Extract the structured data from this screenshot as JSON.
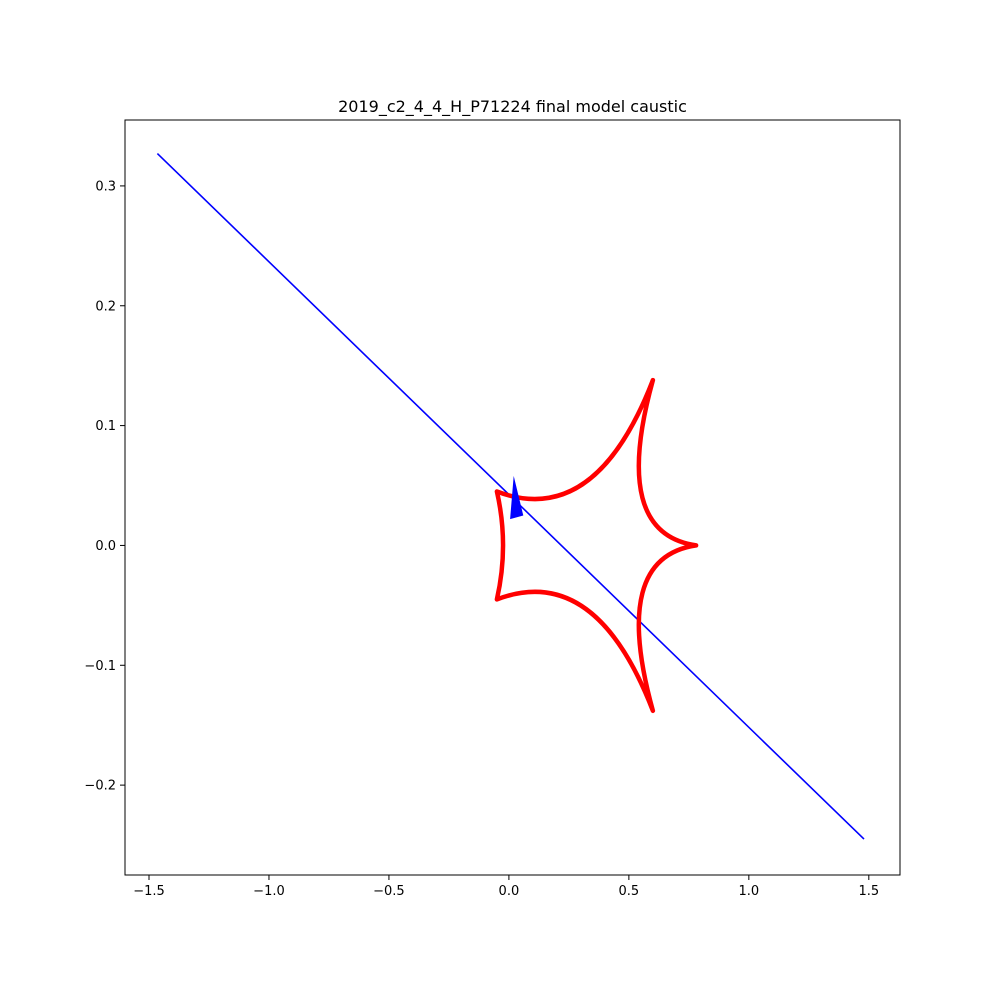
{
  "chart_data": {
    "type": "line",
    "title": "2019_c2_4_4_H_P71224 final model caustic",
    "xlabel": "",
    "ylabel": "",
    "xlim": [
      -1.6,
      1.63
    ],
    "ylim": [
      -0.275,
      0.355
    ],
    "xticks": [
      -1.5,
      -1.0,
      -0.5,
      0.0,
      0.5,
      1.0,
      1.5
    ],
    "xtick_labels": [
      "−1.5",
      "−1.0",
      "−0.5",
      "0.0",
      "0.5",
      "1.0",
      "1.5"
    ],
    "yticks": [
      -0.2,
      -0.1,
      0.0,
      0.1,
      0.2,
      0.3
    ],
    "ytick_labels": [
      "−0.2",
      "−0.1",
      "0.0",
      "0.1",
      "0.2",
      "0.3"
    ],
    "grid": false,
    "series": [
      {
        "kind": "trajectory",
        "color": "#0000ff",
        "x": [
          -1.465,
          1.48
        ],
        "y": [
          0.327,
          -0.245
        ]
      },
      {
        "kind": "caustic",
        "color": "#ff0000",
        "cusps": [
          [
            -0.05,
            0.045
          ],
          [
            0.6,
            0.138
          ],
          [
            0.78,
            0.0
          ],
          [
            0.6,
            -0.138
          ],
          [
            -0.05,
            -0.045
          ]
        ]
      }
    ],
    "arrow": {
      "color": "#0000ff",
      "tip": [
        0.02,
        0.058
      ],
      "base": [
        [
          0.005,
          0.022
        ],
        [
          0.06,
          0.025
        ]
      ]
    }
  }
}
